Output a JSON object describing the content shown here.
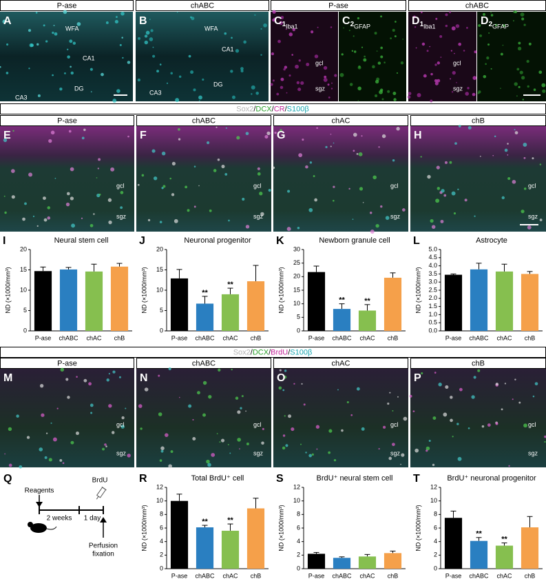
{
  "row1": {
    "headers": [
      "P-ase",
      "chABC",
      "P-ase",
      "chABC"
    ],
    "panels": [
      {
        "letter": "A",
        "labels": [
          "WFA",
          "CA1",
          "DG",
          "CA3"
        ]
      },
      {
        "letter": "B",
        "labels": [
          "WFA",
          "CA1",
          "DG",
          "CA3"
        ]
      },
      {
        "letter": "C",
        "sub": "1",
        "labels": [
          "Iba1",
          "gcl",
          "sgz"
        ]
      },
      {
        "letter": "C",
        "sub": "2",
        "labels": [
          "GFAP"
        ]
      },
      {
        "letter": "D",
        "sub": "1",
        "labels": [
          "Iba1",
          "gcl",
          "sgz"
        ]
      },
      {
        "letter": "D",
        "sub": "2",
        "labels": [
          "GFAP"
        ]
      }
    ]
  },
  "stain1": [
    {
      "text": "Sox2",
      "color": "#b4b4b4"
    },
    {
      "text": "/",
      "color": "#000000"
    },
    {
      "text": "DCX",
      "color": "#2aa02a"
    },
    {
      "text": "/",
      "color": "#000000"
    },
    {
      "text": "CR",
      "color": "#c4279a"
    },
    {
      "text": "/",
      "color": "#000000"
    },
    {
      "text": "S100β",
      "color": "#18a6b0"
    }
  ],
  "row2": {
    "headers": [
      "P-ase",
      "chABC",
      "chAC",
      "chB"
    ],
    "panels": [
      {
        "letter": "E",
        "labels": [
          "gcl",
          "sgz"
        ]
      },
      {
        "letter": "F",
        "labels": [
          "gcl",
          "sgz"
        ]
      },
      {
        "letter": "G",
        "labels": [
          "gcl",
          "sgz"
        ]
      },
      {
        "letter": "H",
        "labels": [
          "gcl",
          "sgz"
        ]
      }
    ]
  },
  "stain2": [
    {
      "text": "Sox2",
      "color": "#b4b4b4"
    },
    {
      "text": "/",
      "color": "#000000"
    },
    {
      "text": "DCX",
      "color": "#2aa02a"
    },
    {
      "text": "/",
      "color": "#000000"
    },
    {
      "text": "BrdU",
      "color": "#c4279a"
    },
    {
      "text": "/",
      "color": "#000000"
    },
    {
      "text": "S100β",
      "color": "#18a6b0"
    }
  ],
  "row3": {
    "headers": [
      "P-ase",
      "chABC",
      "chAC",
      "chB"
    ],
    "panels": [
      {
        "letter": "M",
        "labels": [
          "gcl",
          "sgz"
        ]
      },
      {
        "letter": "N",
        "labels": [
          "gcl",
          "sgz"
        ]
      },
      {
        "letter": "O",
        "labels": [
          "gcl",
          "sgz"
        ]
      },
      {
        "letter": "P",
        "labels": [
          "gcl",
          "sgz"
        ]
      }
    ]
  },
  "schematic": {
    "letter": "Q",
    "reagents": "Reagents",
    "brdu": "BrdU",
    "interval1": "2 weeks",
    "interval2": "1 day",
    "endpoint": [
      "Perfusion",
      "fixation"
    ]
  },
  "chart_data": [
    {
      "type": "bar",
      "letter": "I",
      "title": "Neural stem cell",
      "ylabel": "ND (×1000/mm³)",
      "categories": [
        "P-ase",
        "chABC",
        "chAC",
        "chB"
      ],
      "values": [
        14.7,
        15.1,
        14.6,
        15.8
      ],
      "errors": [
        1.0,
        0.5,
        1.8,
        0.8
      ],
      "significance": [
        null,
        null,
        null,
        null
      ],
      "colors": [
        "#000000",
        "#2a7fc1",
        "#86bf4f",
        "#f5a04a"
      ],
      "ylim": [
        0,
        20
      ],
      "yticks": [
        0,
        5,
        10,
        15,
        20
      ]
    },
    {
      "type": "bar",
      "letter": "J",
      "title": "Neuronal progenitor",
      "ylabel": "ND (×1000/mm³)",
      "categories": [
        "P-ase",
        "chABC",
        "chAC",
        "chB"
      ],
      "values": [
        12.9,
        6.7,
        9.0,
        12.2
      ],
      "errors": [
        2.2,
        1.8,
        1.5,
        3.9
      ],
      "significance": [
        null,
        "**",
        "**",
        null
      ],
      "colors": [
        "#000000",
        "#2a7fc1",
        "#86bf4f",
        "#f5a04a"
      ],
      "ylim": [
        0,
        20
      ],
      "yticks": [
        0,
        5,
        10,
        15,
        20
      ]
    },
    {
      "type": "bar",
      "letter": "K",
      "title": "Newborn granule cell",
      "ylabel": "ND (×1000/mm³)",
      "categories": [
        "P-ase",
        "chABC",
        "chAC",
        "chB"
      ],
      "values": [
        21.7,
        8.1,
        7.5,
        19.6
      ],
      "errors": [
        2.2,
        1.9,
        2.2,
        1.8
      ],
      "significance": [
        null,
        "**",
        "**",
        null
      ],
      "colors": [
        "#000000",
        "#2a7fc1",
        "#86bf4f",
        "#f5a04a"
      ],
      "ylim": [
        0,
        30
      ],
      "yticks": [
        0,
        5,
        10,
        15,
        20,
        25,
        30
      ]
    },
    {
      "type": "bar",
      "letter": "L",
      "title": "Astrocyte",
      "ylabel": "ND (×1000/mm³)",
      "categories": [
        "P-ase",
        "chABC",
        "chAC",
        "chB"
      ],
      "values": [
        3.45,
        3.78,
        3.65,
        3.5
      ],
      "errors": [
        0.05,
        0.38,
        0.45,
        0.15
      ],
      "significance": [
        null,
        null,
        null,
        null
      ],
      "colors": [
        "#000000",
        "#2a7fc1",
        "#86bf4f",
        "#f5a04a"
      ],
      "ylim": [
        0,
        5
      ],
      "yticks": [
        {
          "value": 0,
          "label": "0.0"
        },
        0.5,
        {
          "value": 1,
          "label": "1.0"
        },
        1.5,
        {
          "value": 2,
          "label": "2.0"
        },
        2.5,
        {
          "value": 3,
          "label": "3.0"
        },
        3.5,
        {
          "value": 4,
          "label": "4.0"
        },
        4.5,
        {
          "value": 5,
          "label": "5.0"
        }
      ]
    },
    {
      "type": "bar",
      "letter": "R",
      "title": "Total BrdU⁺ cell",
      "ylabel": "ND (×1000/mm³)",
      "categories": [
        "P-ase",
        "chABC",
        "chAC",
        "chB"
      ],
      "values": [
        10.0,
        6.1,
        5.6,
        8.9
      ],
      "errors": [
        1.0,
        0.3,
        1.0,
        1.5
      ],
      "significance": [
        null,
        "**",
        "**",
        null
      ],
      "colors": [
        "#000000",
        "#2a7fc1",
        "#86bf4f",
        "#f5a04a"
      ],
      "ylim": [
        0,
        12
      ],
      "yticks": [
        0,
        2,
        4,
        6,
        8,
        10,
        12
      ]
    },
    {
      "type": "bar",
      "letter": "S",
      "title": "BrdU⁺ neural stem cell",
      "ylabel": "ND (×1000/mm³)",
      "categories": [
        "P-ase",
        "chABC",
        "chAC",
        "chB"
      ],
      "values": [
        2.2,
        1.6,
        1.8,
        2.3
      ],
      "errors": [
        0.2,
        0.15,
        0.3,
        0.3
      ],
      "significance": [
        null,
        null,
        null,
        null
      ],
      "colors": [
        "#000000",
        "#2a7fc1",
        "#86bf4f",
        "#f5a04a"
      ],
      "ylim": [
        0,
        12
      ],
      "yticks": [
        0,
        2,
        4,
        6,
        8,
        10,
        12
      ]
    },
    {
      "type": "bar",
      "letter": "T",
      "title": "BrdU⁺ neuronal progenitor",
      "ylabel": "ND (×1000/mm³)",
      "categories": [
        "P-ase",
        "chABC",
        "chAC",
        "chB"
      ],
      "values": [
        7.5,
        4.1,
        3.4,
        6.1
      ],
      "errors": [
        1.0,
        0.5,
        0.4,
        1.6
      ],
      "significance": [
        null,
        "**",
        "**",
        null
      ],
      "colors": [
        "#000000",
        "#2a7fc1",
        "#86bf4f",
        "#f5a04a"
      ],
      "ylim": [
        0,
        12
      ],
      "yticks": [
        0,
        2,
        4,
        6,
        8,
        10,
        12
      ]
    }
  ]
}
